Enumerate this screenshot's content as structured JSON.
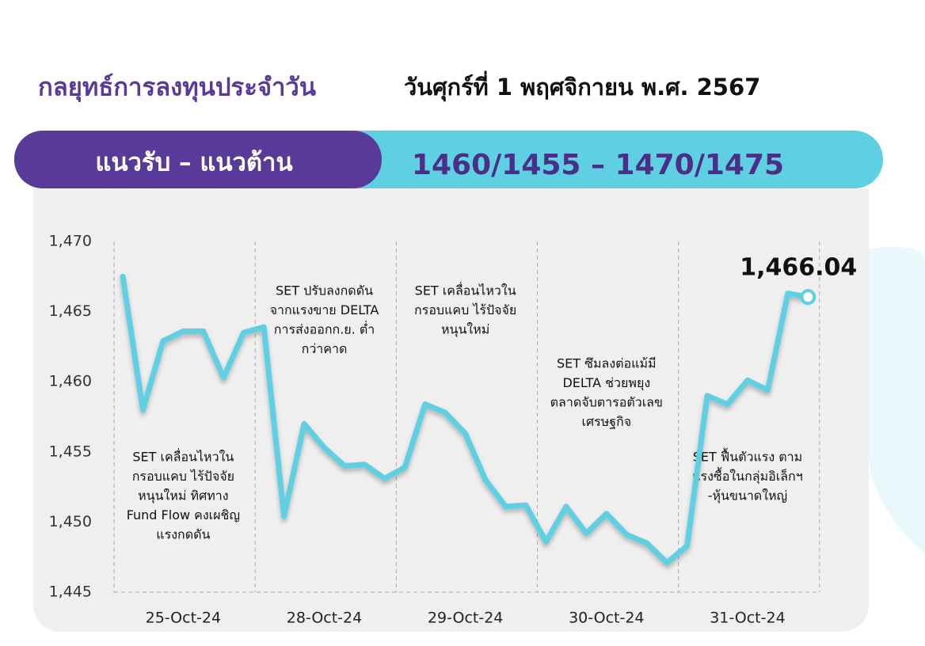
{
  "header": {
    "title": "กลยุทธ์การลงทุนประจำวัน",
    "date": "วันศุกร์ที่ 1 พฤศจิกายน พ.ศ. 2567"
  },
  "banner": {
    "label": "แนวรับ – แนวต้าน",
    "levels": "1460/1455 – 1470/1475"
  },
  "chart_data": {
    "type": "line",
    "categories": [
      null,
      null,
      null,
      "25-Oct-24",
      null,
      null,
      null,
      null,
      null,
      null,
      "28-Oct-24",
      null,
      null,
      null,
      null,
      null,
      null,
      "29-Oct-24",
      null,
      null,
      null,
      null,
      null,
      null,
      "30-Oct-24",
      null,
      null,
      null,
      null,
      null,
      null,
      "31-Oct-24",
      null,
      null,
      null
    ],
    "values": [
      1467.5,
      1458.0,
      1462.9,
      1463.6,
      1463.6,
      1460.3,
      1463.5,
      1463.9,
      1450.4,
      1457.0,
      1455.3,
      1454.0,
      1454.1,
      1453.1,
      1453.9,
      1458.4,
      1457.8,
      1456.3,
      1453.0,
      1451.1,
      1451.2,
      1448.6,
      1451.1,
      1449.2,
      1450.6,
      1449.1,
      1448.5,
      1447.1,
      1448.3,
      1459.0,
      1458.4,
      1460.1,
      1459.4,
      1466.3,
      1466.04
    ],
    "value_labels": [
      null,
      null,
      null,
      null,
      null,
      null,
      null,
      null,
      null,
      null,
      null,
      null,
      null,
      null,
      null,
      null,
      null,
      null,
      null,
      null,
      null,
      null,
      null,
      null,
      null,
      null,
      null,
      null,
      null,
      null,
      null,
      null,
      null,
      null,
      "1,466.04"
    ],
    "color": "#5fd0e2",
    "ylim": [
      1445,
      1470
    ],
    "yticks": [
      {
        "value": 1445,
        "label": "1,445"
      },
      {
        "value": 1450,
        "label": "1,450"
      },
      {
        "value": 1455,
        "label": "1,455"
      },
      {
        "value": 1460,
        "label": "1,460"
      },
      {
        "value": 1465,
        "label": "1,465"
      },
      {
        "value": 1470,
        "label": "1,470"
      }
    ],
    "annotations": [
      [
        "SET เคลื่อนไหวใน",
        "กรอบแคบ ไร้ปัจจัย",
        "หนุนใหม่ ทิศทาง",
        "Fund Flow คงเผชิญ",
        "แรงกดดัน"
      ],
      [
        "SET ปรับลงกดดัน",
        "จากแรงขาย DELTA",
        "การส่งออกก.ย. ต่ำ",
        "กว่าคาด"
      ],
      [
        "SET เคลื่อนไหวใน",
        "กรอบแคบ ไร้ปัจจัย",
        "หนุนใหม่"
      ],
      [
        "SET ซึมลงต่อแม้มี",
        "DELTA ช่วยพยุง",
        "ตลาดจับตารอตัวเลข",
        "เศรษฐกิจ"
      ],
      [
        "SET ฟื้นตัวแรง ตาม",
        "แรงซื้อในกลุ่มอิเล็กฯ",
        "-หุ้นขนาดใหญ่"
      ]
    ]
  }
}
